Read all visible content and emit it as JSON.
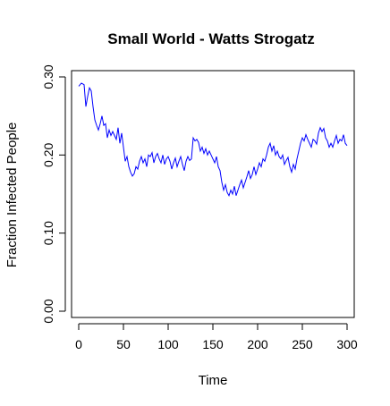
{
  "chart_data": {
    "type": "line",
    "title": "Small World - Watts Strogatz",
    "xlabel": "Time",
    "ylabel": "Fraction Infected People",
    "xlim": [
      -8,
      308
    ],
    "ylim": [
      -0.008,
      0.308
    ],
    "x_ticks": [
      0,
      50,
      100,
      150,
      200,
      250,
      300
    ],
    "y_ticks": [
      0.0,
      0.1,
      0.2,
      0.3
    ],
    "y_tick_labels": [
      "0.00",
      "0.10",
      "0.20",
      "0.30"
    ],
    "grid": false,
    "series": [
      {
        "color": "#0000ff",
        "x": [
          0,
          3,
          6,
          8,
          10,
          12,
          14,
          16,
          18,
          20,
          22,
          24,
          26,
          28,
          30,
          32,
          34,
          36,
          38,
          40,
          42,
          44,
          46,
          48,
          50,
          52,
          54,
          56,
          58,
          60,
          62,
          64,
          66,
          68,
          70,
          72,
          74,
          76,
          78,
          80,
          82,
          84,
          86,
          88,
          90,
          92,
          94,
          96,
          98,
          100,
          102,
          104,
          106,
          108,
          110,
          112,
          114,
          116,
          118,
          120,
          122,
          124,
          126,
          128,
          130,
          132,
          134,
          136,
          138,
          140,
          142,
          144,
          146,
          148,
          150,
          152,
          154,
          156,
          158,
          160,
          162,
          164,
          166,
          168,
          170,
          172,
          174,
          176,
          178,
          180,
          182,
          184,
          186,
          188,
          190,
          192,
          194,
          196,
          198,
          200,
          202,
          204,
          206,
          208,
          210,
          212,
          214,
          216,
          218,
          220,
          222,
          224,
          226,
          228,
          230,
          232,
          234,
          236,
          238,
          240,
          242,
          244,
          246,
          248,
          250,
          252,
          254,
          256,
          258,
          260,
          262,
          264,
          266,
          268,
          270,
          272,
          274,
          276,
          278,
          280,
          282,
          284,
          286,
          288,
          290,
          292,
          294,
          296,
          298,
          300
        ],
        "values": [
          0.288,
          0.292,
          0.29,
          0.262,
          0.275,
          0.286,
          0.282,
          0.262,
          0.245,
          0.238,
          0.232,
          0.24,
          0.25,
          0.238,
          0.24,
          0.222,
          0.232,
          0.225,
          0.23,
          0.225,
          0.22,
          0.235,
          0.215,
          0.228,
          0.21,
          0.192,
          0.198,
          0.185,
          0.178,
          0.173,
          0.176,
          0.185,
          0.182,
          0.192,
          0.198,
          0.19,
          0.195,
          0.185,
          0.2,
          0.198,
          0.203,
          0.19,
          0.198,
          0.202,
          0.195,
          0.19,
          0.2,
          0.188,
          0.195,
          0.198,
          0.192,
          0.182,
          0.19,
          0.196,
          0.185,
          0.192,
          0.198,
          0.188,
          0.18,
          0.192,
          0.198,
          0.193,
          0.195,
          0.222,
          0.218,
          0.22,
          0.216,
          0.205,
          0.21,
          0.202,
          0.208,
          0.2,
          0.205,
          0.2,
          0.195,
          0.19,
          0.198,
          0.185,
          0.18,
          0.165,
          0.155,
          0.162,
          0.152,
          0.148,
          0.155,
          0.15,
          0.16,
          0.148,
          0.155,
          0.162,
          0.168,
          0.158,
          0.165,
          0.172,
          0.18,
          0.17,
          0.175,
          0.185,
          0.175,
          0.182,
          0.19,
          0.185,
          0.195,
          0.192,
          0.2,
          0.21,
          0.215,
          0.205,
          0.212,
          0.2,
          0.205,
          0.198,
          0.195,
          0.2,
          0.188,
          0.193,
          0.197,
          0.185,
          0.178,
          0.188,
          0.182,
          0.195,
          0.205,
          0.215,
          0.222,
          0.218,
          0.226,
          0.22,
          0.215,
          0.21,
          0.22,
          0.218,
          0.214,
          0.228,
          0.235,
          0.23,
          0.234,
          0.222,
          0.218,
          0.21,
          0.215,
          0.21,
          0.218,
          0.225,
          0.215,
          0.22,
          0.218,
          0.226,
          0.215,
          0.212
        ]
      }
    ]
  }
}
